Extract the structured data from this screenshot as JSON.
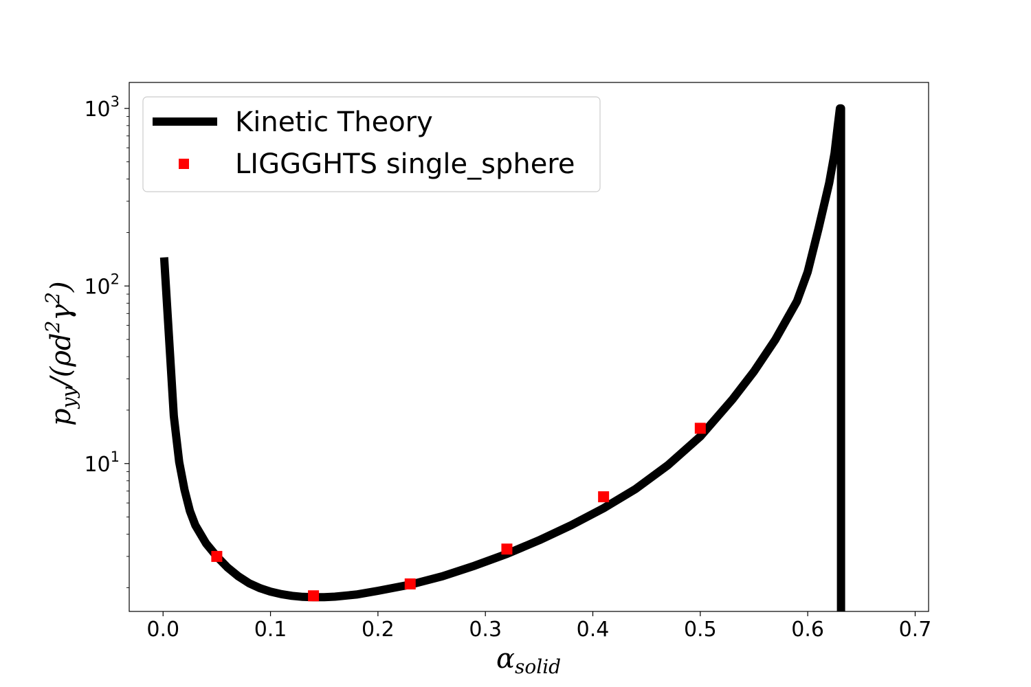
{
  "chart_data": {
    "type": "line",
    "xlabel": {
      "base": "α",
      "sub": "solid"
    },
    "ylabel": {
      "text": "p",
      "sub": "yy",
      "rest": "/(ρd",
      "sup1": "2",
      "mid": "γ",
      "sup2": "2",
      "close": ")"
    },
    "xlim": [
      -0.0315,
      0.7125
    ],
    "ylim": [
      1.47,
      1400
    ],
    "yscale": "log",
    "xticks": [
      0.0,
      0.1,
      0.2,
      0.3,
      0.4,
      0.5,
      0.6,
      0.7
    ],
    "xtick_labels": [
      "0.0",
      "0.1",
      "0.2",
      "0.3",
      "0.4",
      "0.5",
      "0.6",
      "0.7"
    ],
    "yticks": [
      {
        "value": 10,
        "base": "10",
        "exp": "1"
      },
      {
        "value": 100,
        "base": "10",
        "exp": "2"
      },
      {
        "value": 1000,
        "base": "10",
        "exp": "3"
      }
    ],
    "grid": false,
    "legend_position": "top-left",
    "series": [
      {
        "name": "Kinetic Theory",
        "kind": "line",
        "color": "#000000",
        "x": [
          0.001,
          0.01,
          0.015,
          0.02,
          0.025,
          0.03,
          0.04,
          0.05,
          0.06,
          0.07,
          0.08,
          0.09,
          0.1,
          0.11,
          0.12,
          0.13,
          0.14,
          0.15,
          0.16,
          0.18,
          0.2,
          0.23,
          0.26,
          0.29,
          0.32,
          0.35,
          0.38,
          0.41,
          0.44,
          0.47,
          0.5,
          0.53,
          0.55,
          0.57,
          0.59,
          0.6,
          0.61,
          0.62,
          0.625,
          0.628,
          0.63,
          0.631,
          0.631
        ],
        "y": [
          145,
          18.5,
          10.2,
          7.1,
          5.4,
          4.5,
          3.55,
          3.0,
          2.6,
          2.32,
          2.12,
          1.99,
          1.9,
          1.84,
          1.8,
          1.775,
          1.77,
          1.77,
          1.78,
          1.83,
          1.92,
          2.08,
          2.32,
          2.66,
          3.1,
          3.7,
          4.5,
          5.6,
          7.2,
          9.8,
          14.2,
          23.0,
          33.0,
          50.0,
          82.0,
          120.0,
          210.0,
          380.0,
          560.0,
          800.0,
          1000.0,
          1000.0,
          1.2
        ]
      },
      {
        "name": "LIGGGHTS single_sphere",
        "kind": "markers",
        "marker": "square",
        "color": "#ff0000",
        "x": [
          0.05,
          0.14,
          0.23,
          0.32,
          0.41,
          0.5
        ],
        "y": [
          3.0,
          1.8,
          2.1,
          3.3,
          6.5,
          15.8
        ]
      }
    ]
  }
}
